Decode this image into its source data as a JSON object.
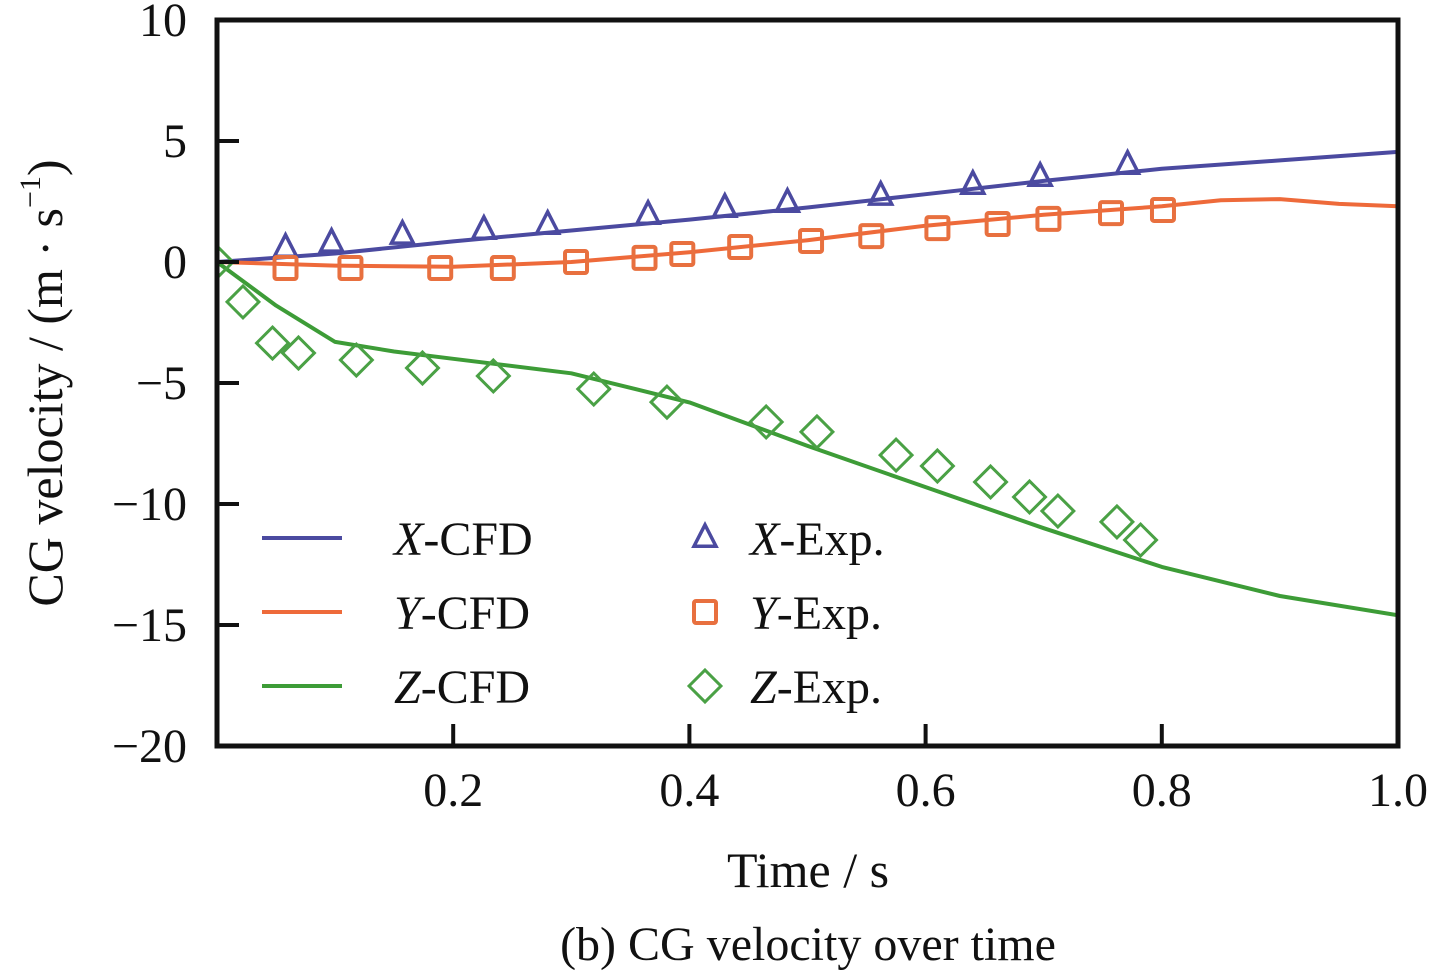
{
  "chart_data": {
    "type": "line",
    "title": "",
    "caption": "(b) CG velocity over time",
    "xlabel": "Time / s",
    "ylabel": "CG velocity / (m · s⁻¹)",
    "ylabel_parts": {
      "main": "CG velocity / (m · s",
      "sup": "−1",
      "close": ")"
    },
    "xlim": [
      0,
      1.0
    ],
    "ylim": [
      -20,
      10
    ],
    "xticks": [
      0.2,
      0.4,
      0.6,
      0.8,
      1.0
    ],
    "xtick_labels": [
      "0.2",
      "0.4",
      "0.6",
      "0.8",
      "1.0"
    ],
    "yticks": [
      10,
      5,
      0,
      -5,
      -10,
      -15,
      -20
    ],
    "ytick_labels": [
      "10",
      "5",
      "0",
      "−5",
      "−10",
      "−15",
      "−20"
    ],
    "grid": false,
    "legend_position": "lower-left",
    "series": [
      {
        "name": "X-CFD",
        "axis": "X",
        "suffix": "-CFD",
        "kind": "line",
        "color": "#4b4aa0",
        "x": [
          0,
          0.1,
          0.2,
          0.3,
          0.4,
          0.5,
          0.6,
          0.7,
          0.8,
          0.9,
          1.0
        ],
        "y": [
          0,
          0.35,
          0.85,
          1.3,
          1.75,
          2.25,
          2.8,
          3.35,
          3.85,
          4.2,
          4.55
        ]
      },
      {
        "name": "Y-CFD",
        "axis": "Y",
        "suffix": "-CFD",
        "kind": "line",
        "color": "#ee6a3a",
        "x": [
          0,
          0.1,
          0.2,
          0.3,
          0.4,
          0.5,
          0.6,
          0.7,
          0.8,
          0.85,
          0.9,
          0.95,
          1.0
        ],
        "y": [
          0,
          -0.15,
          -0.2,
          0.0,
          0.4,
          0.9,
          1.5,
          1.95,
          2.3,
          2.55,
          2.6,
          2.4,
          2.3
        ]
      },
      {
        "name": "Z-CFD",
        "axis": "Z",
        "suffix": "-CFD",
        "kind": "line",
        "color": "#3d9c37",
        "x": [
          0,
          0.05,
          0.1,
          0.15,
          0.2,
          0.3,
          0.4,
          0.5,
          0.6,
          0.7,
          0.8,
          0.9,
          1.0
        ],
        "y": [
          0,
          -1.8,
          -3.3,
          -3.7,
          -4.0,
          -4.6,
          -5.8,
          -7.6,
          -9.3,
          -11.0,
          -12.6,
          -13.8,
          -14.6
        ]
      },
      {
        "name": "X-Exp.",
        "axis": "X",
        "suffix": "-Exp.",
        "kind": "marker",
        "marker": "triangle",
        "color": "#4b4aa0",
        "x": [
          0.058,
          0.097,
          0.157,
          0.226,
          0.28,
          0.365,
          0.43,
          0.483,
          0.562,
          0.64,
          0.697,
          0.771
        ],
        "y": [
          0.58,
          0.79,
          1.12,
          1.32,
          1.53,
          1.94,
          2.23,
          2.44,
          2.73,
          3.18,
          3.51,
          4.01
        ]
      },
      {
        "name": "Y-Exp.",
        "axis": "Y",
        "suffix": "-Exp.",
        "kind": "marker",
        "marker": "square",
        "color": "#e8703f",
        "x": [
          0.058,
          0.113,
          0.189,
          0.242,
          0.304,
          0.362,
          0.394,
          0.443,
          0.503,
          0.554,
          0.61,
          0.661,
          0.704,
          0.757,
          0.801
        ],
        "y": [
          -0.25,
          -0.25,
          -0.25,
          -0.25,
          0.0,
          0.17,
          0.33,
          0.62,
          0.87,
          1.07,
          1.4,
          1.57,
          1.78,
          2.02,
          2.15
        ]
      },
      {
        "name": "Z-Exp.",
        "axis": "Z",
        "suffix": "-Exp.",
        "kind": "marker",
        "marker": "diamond",
        "color": "#4aa145",
        "x": [
          0.0,
          0.022,
          0.047,
          0.069,
          0.118,
          0.174,
          0.234,
          0.319,
          0.381,
          0.465,
          0.508,
          0.575,
          0.61,
          0.655,
          0.688,
          0.712,
          0.762,
          0.782
        ],
        "y": [
          0.0,
          -1.65,
          -3.35,
          -3.76,
          -4.05,
          -4.38,
          -4.71,
          -5.25,
          -5.79,
          -6.61,
          -7.02,
          -7.98,
          -8.43,
          -9.09,
          -9.71,
          -10.29,
          -10.74,
          -11.49
        ]
      }
    ],
    "legend": [
      {
        "label_axis": "X",
        "label_rest": "-CFD",
        "kind": "line",
        "color": "#4b4aa0"
      },
      {
        "label_axis": "Y",
        "label_rest": "-CFD",
        "kind": "line",
        "color": "#ee6a3a"
      },
      {
        "label_axis": "Z",
        "label_rest": "-CFD",
        "kind": "line",
        "color": "#3d9c37"
      },
      {
        "label_axis": "X",
        "label_rest": "-Exp.",
        "kind": "marker",
        "marker": "triangle",
        "color": "#4b4aa0"
      },
      {
        "label_axis": "Y",
        "label_rest": "-Exp.",
        "kind": "marker",
        "marker": "square",
        "color": "#e8703f"
      },
      {
        "label_axis": "Z",
        "label_rest": "-Exp.",
        "kind": "marker",
        "marker": "diamond",
        "color": "#4aa145"
      }
    ]
  }
}
